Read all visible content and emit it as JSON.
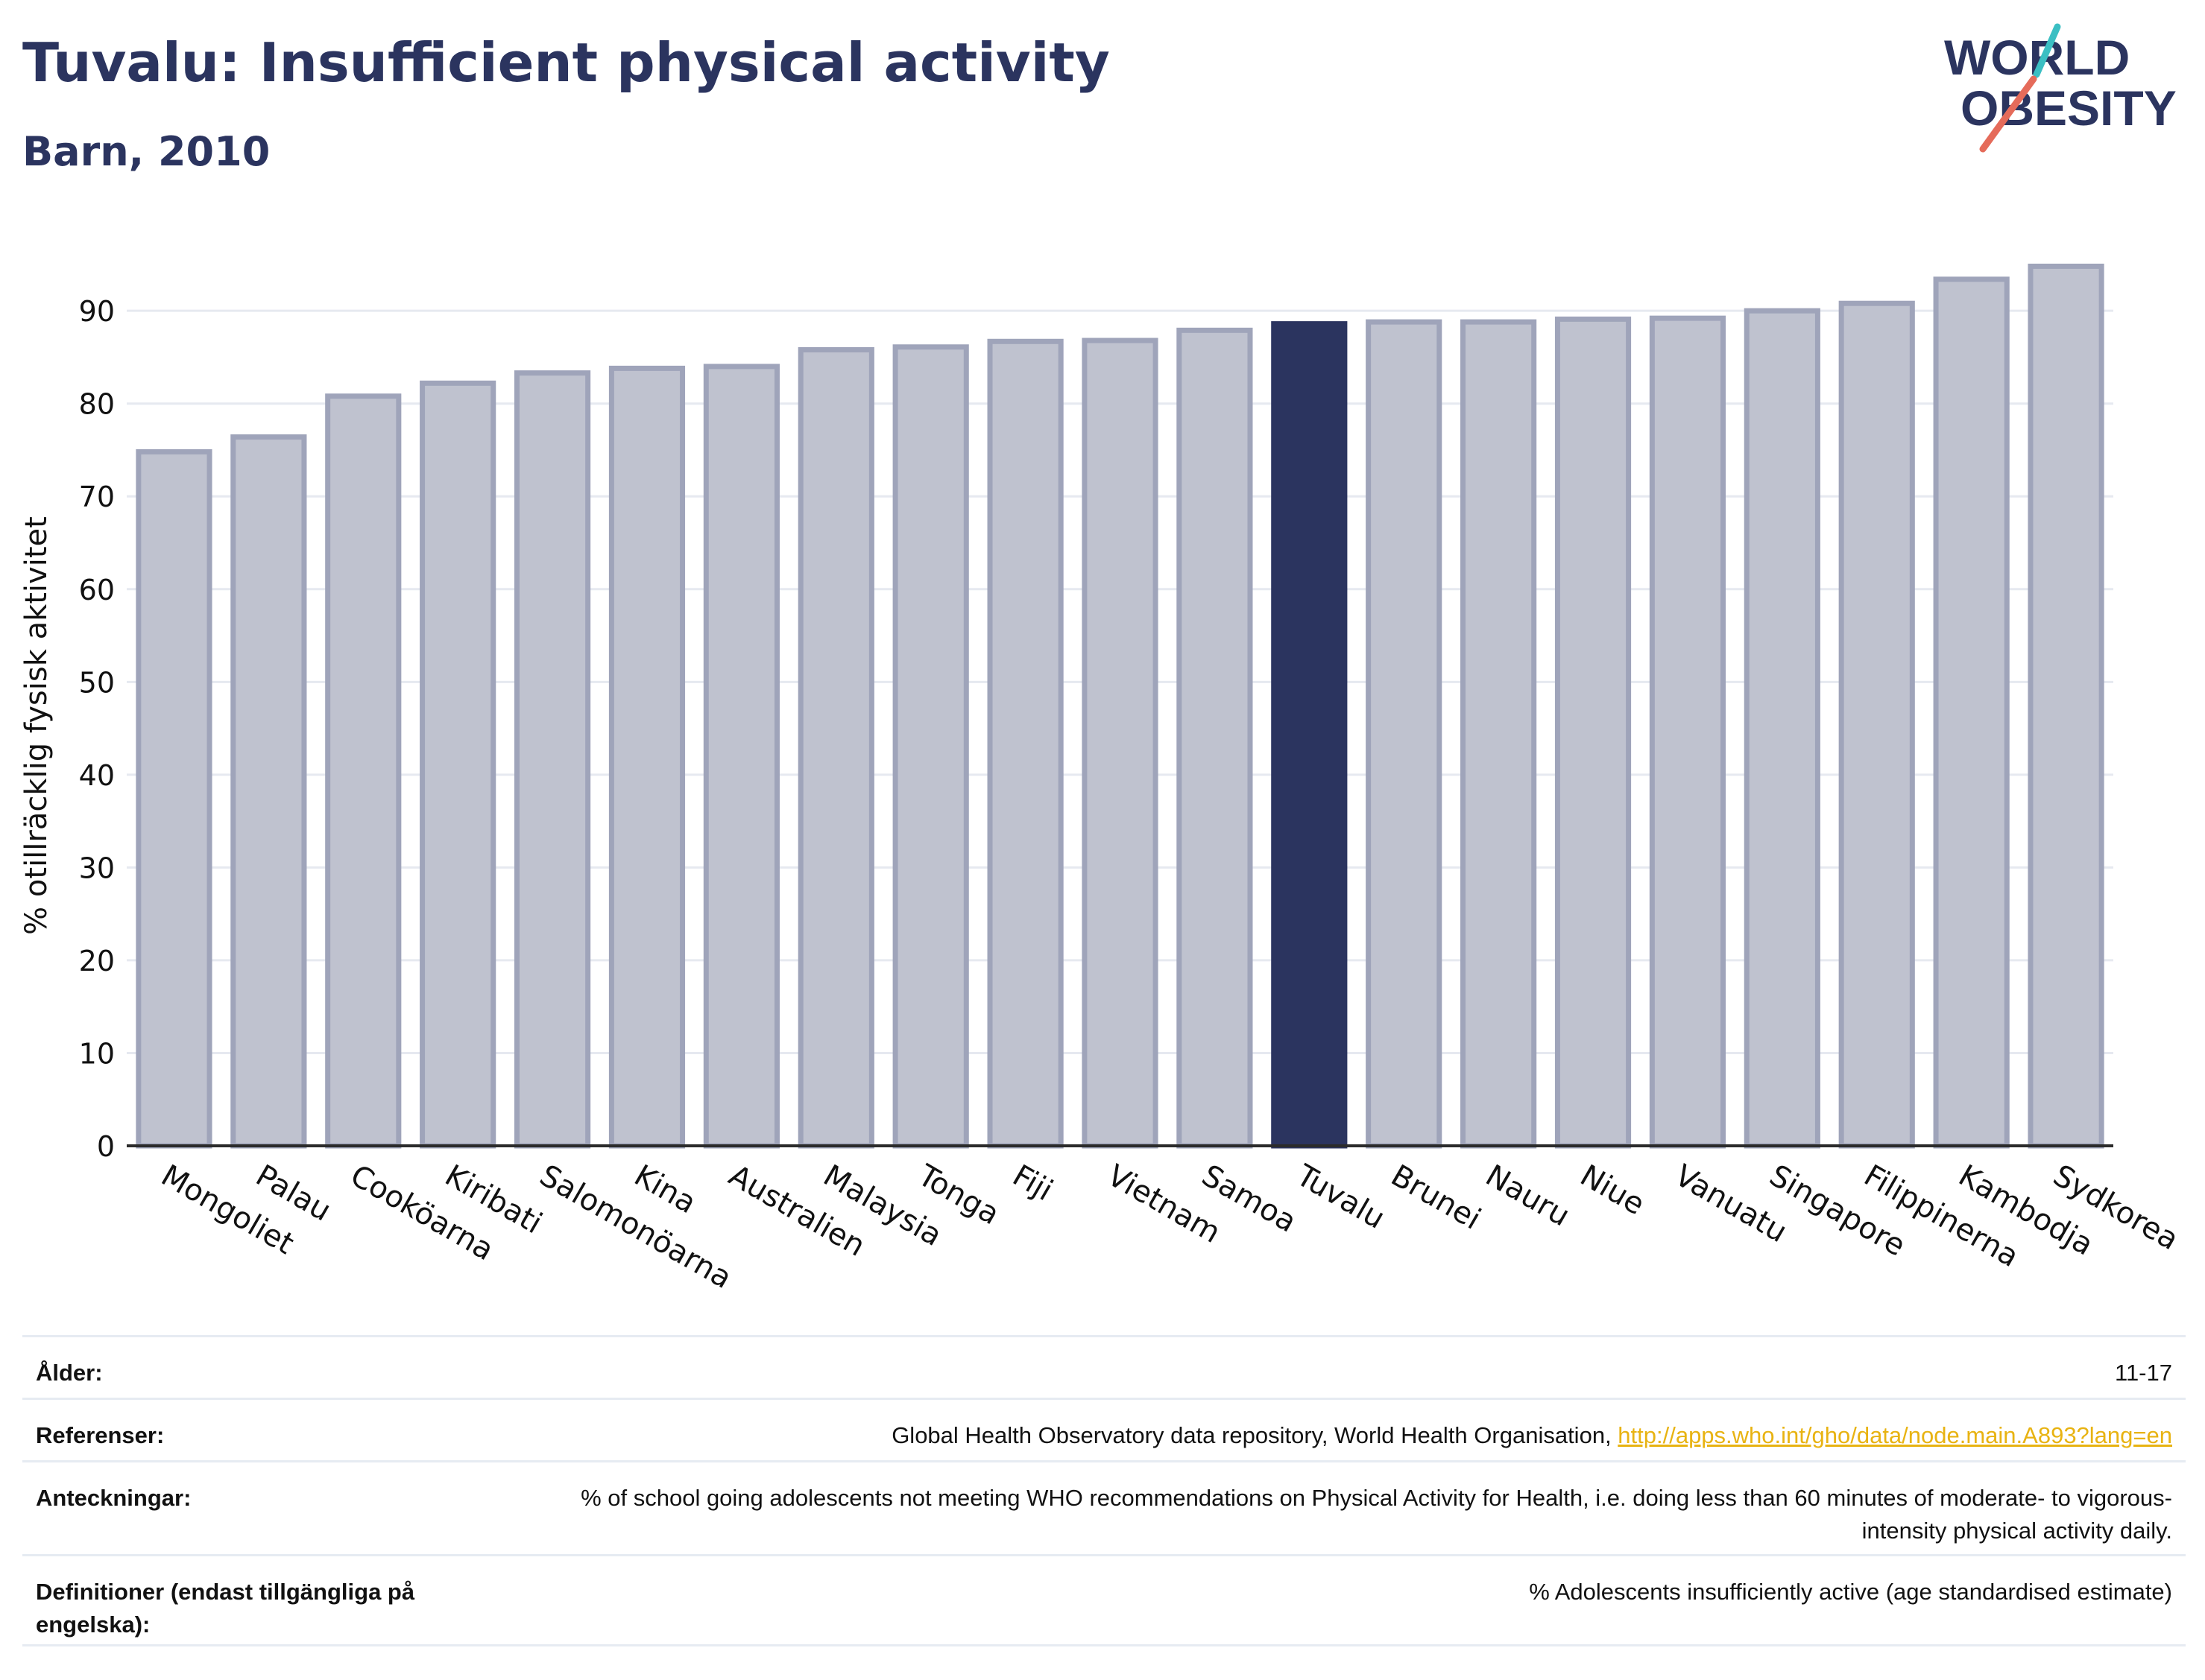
{
  "header": {
    "title": "Tuvalu: Insufficient physical activity",
    "subtitle": "Barn, 2010"
  },
  "logo": {
    "line1": "WORLD",
    "line2": "OBESITY",
    "icon": "world-obesity-logo"
  },
  "colors": {
    "highlight": "#2b345f",
    "bar": "#bfc2cf",
    "bar_border": "#9fa4ba",
    "link": "#e8b312"
  },
  "chart_data": {
    "type": "bar",
    "title": "Tuvalu: Insufficient physical activity",
    "subtitle": "Barn, 2010",
    "xlabel": "",
    "ylabel": "% otillräcklig fysisk aktivitet",
    "ylim": [
      0,
      97
    ],
    "yticks": [
      0,
      10,
      20,
      30,
      40,
      50,
      60,
      70,
      80,
      90
    ],
    "grid": true,
    "highlight": "Tuvalu",
    "categories": [
      "Mongoliet",
      "Palau",
      "Cooköarna",
      "Kiribati",
      "Salomonöarna",
      "Kina",
      "Australien",
      "Malaysia",
      "Tonga",
      "Fiji",
      "Vietnam",
      "Samoa",
      "Tuvalu",
      "Brunei",
      "Nauru",
      "Niue",
      "Vanuatu",
      "Singapore",
      "Filippinerna",
      "Kambodja",
      "Sydkorea"
    ],
    "values": [
      74.8,
      76.4,
      80.8,
      82.2,
      83.3,
      83.8,
      84.0,
      85.8,
      86.1,
      86.7,
      86.8,
      87.9,
      88.6,
      88.8,
      88.8,
      89.1,
      89.2,
      90.0,
      90.8,
      93.4,
      94.8
    ]
  },
  "meta": {
    "rows": [
      {
        "label": "Ålder:",
        "value": "11-17"
      },
      {
        "label": "Referenser:",
        "value": "Global Health Observatory data repository, World Health Organisation, ",
        "link": "http://apps.who.int/gho/data/node.main.A893?lang=en"
      },
      {
        "label": "Anteckningar:",
        "value": "% of school going adolescents not meeting WHO recommendations on Physical Activity for Health, i.e. doing less than 60 minutes of moderate- to vigorous-intensity physical activity daily."
      },
      {
        "label": "Definitioner (endast tillgängliga på engelska):",
        "value": "% Adolescents insufficiently active (age standardised estimate)"
      }
    ]
  }
}
